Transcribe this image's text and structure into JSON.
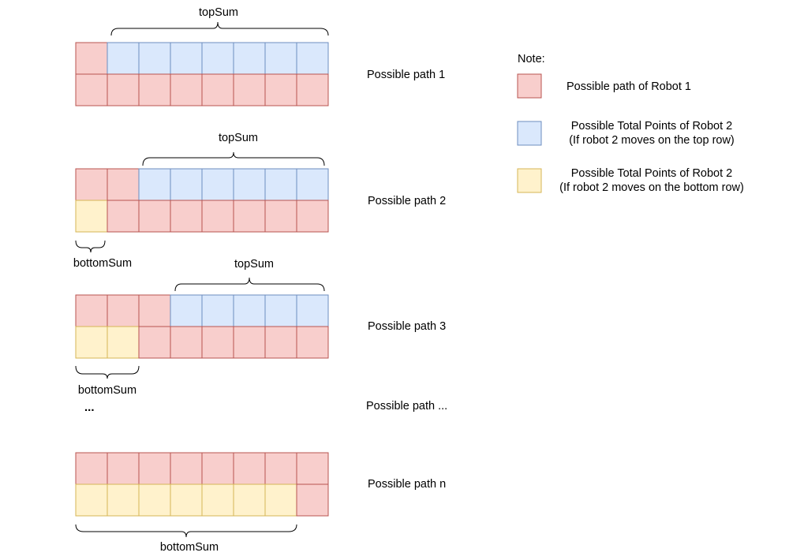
{
  "colors": {
    "robot1": "#f8cecc",
    "robot1_stroke": "#b85450",
    "top_row": "#dae8fc",
    "top_row_stroke": "#6c8ebf",
    "bottom_row": "#fff2cc",
    "bottom_row_stroke": "#d6b656"
  },
  "labels": {
    "top_sum": "topSum",
    "bottom_sum": "bottomSum",
    "ellipsis": "..."
  },
  "paths": [
    {
      "label": "Possible path 1",
      "top_row": [
        "robot1",
        "top",
        "top",
        "top",
        "top",
        "top",
        "top",
        "top"
      ],
      "bottom_row": [
        "robot1",
        "robot1",
        "robot1",
        "robot1",
        "robot1",
        "robot1",
        "robot1",
        "robot1"
      ]
    },
    {
      "label": "Possible path 2",
      "top_row": [
        "robot1",
        "robot1",
        "top",
        "top",
        "top",
        "top",
        "top",
        "top"
      ],
      "bottom_row": [
        "bottom",
        "robot1",
        "robot1",
        "robot1",
        "robot1",
        "robot1",
        "robot1",
        "robot1"
      ]
    },
    {
      "label": "Possible path 3",
      "top_row": [
        "robot1",
        "robot1",
        "robot1",
        "top",
        "top",
        "top",
        "top",
        "top"
      ],
      "bottom_row": [
        "bottom",
        "bottom",
        "robot1",
        "robot1",
        "robot1",
        "robot1",
        "robot1",
        "robot1"
      ]
    },
    {
      "label": "Possible path ..."
    },
    {
      "label": "Possible path n",
      "top_row": [
        "robot1",
        "robot1",
        "robot1",
        "robot1",
        "robot1",
        "robot1",
        "robot1",
        "robot1"
      ],
      "bottom_row": [
        "bottom",
        "bottom",
        "bottom",
        "bottom",
        "bottom",
        "bottom",
        "bottom",
        "robot1"
      ]
    }
  ],
  "legend": {
    "title": "Note:",
    "items": [
      {
        "color": "robot1",
        "lines": [
          "Possible path of Robot 1"
        ]
      },
      {
        "color": "top",
        "lines": [
          "Possible Total Points of Robot 2",
          "(If robot 2 moves on the top row)"
        ]
      },
      {
        "color": "bottom",
        "lines": [
          "Possible Total Points of Robot 2",
          "(If robot 2 moves on the bottom row)"
        ]
      }
    ]
  }
}
